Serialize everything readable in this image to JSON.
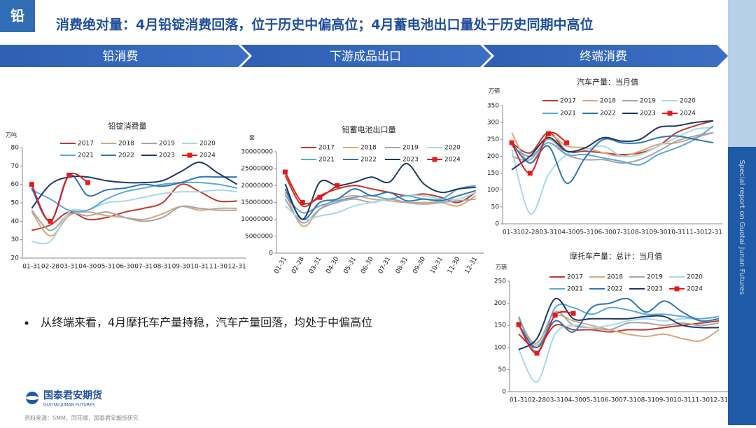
{
  "slide": {
    "badge": "铅",
    "title": "消费绝对量：4月铅锭消费回落，位于历史中偏高位；4月蓄电池出口量处于历史同期中高位",
    "sections": [
      "铅消费",
      "下游成品出口",
      "终端消费"
    ],
    "side_text": "Special report on Guotai Junan Futures",
    "bullet": "从终端来看，4月摩托车产量持稳，汽车产量回落，均处于中偏高位",
    "logo": {
      "name": "国泰君安期货",
      "name_en": "GUOTAI JUNAN FUTURES"
    },
    "source": "资料来源：SMM，同花顺，国泰君安期货研究"
  },
  "chart_data": [
    {
      "type": "line",
      "title": "铅锭消费量",
      "y_unit": "万吨",
      "legend": "top",
      "grid": false,
      "categories": [
        "01-31",
        "02-28",
        "03-31",
        "04-30",
        "05-31",
        "06-30",
        "07-31",
        "08-31",
        "09-30",
        "10-31",
        "11-30",
        "12-31"
      ],
      "ylim": [
        20,
        80
      ],
      "yticks": [
        20,
        30,
        40,
        50,
        60,
        70,
        80
      ],
      "series": [
        {
          "name": "2017",
          "color": "#c0392b",
          "values": [
            35,
            38,
            45,
            41,
            42,
            45,
            47,
            50,
            60,
            56,
            51,
            51
          ]
        },
        {
          "name": "2018",
          "color": "#d9a77a",
          "values": [
            45,
            32,
            43,
            45,
            43,
            42,
            41,
            44,
            48,
            46,
            47,
            47
          ]
        },
        {
          "name": "2019",
          "color": "#a6a6a6",
          "values": [
            46,
            35,
            44,
            43,
            45,
            42,
            40,
            42,
            48,
            47,
            46,
            46
          ]
        },
        {
          "name": "2020",
          "color": "#a8d8ea",
          "values": [
            29,
            29,
            45,
            46,
            50,
            51,
            53,
            55,
            56,
            56,
            57,
            56
          ]
        },
        {
          "name": "2021",
          "color": "#5aa9dc",
          "values": [
            57,
            52,
            46,
            46,
            52,
            56,
            58,
            60,
            61,
            61,
            60,
            58
          ]
        },
        {
          "name": "2022",
          "color": "#2e75b6",
          "values": [
            58,
            40,
            65,
            54,
            57,
            58,
            60,
            59,
            61,
            64,
            64,
            64
          ]
        },
        {
          "name": "2023",
          "color": "#1f3864",
          "values": [
            47,
            60,
            64,
            64,
            62,
            61,
            61,
            62,
            67,
            72,
            66,
            60
          ]
        },
        {
          "name": "2024",
          "color": "#e41a1a",
          "marker": "square",
          "values": [
            60,
            40,
            65,
            61,
            null,
            null,
            null,
            null,
            null,
            null,
            null,
            null
          ]
        }
      ]
    },
    {
      "type": "line",
      "title": "铅蓄电池出口量",
      "y_unit": "套",
      "legend": "top",
      "grid": false,
      "categories": [
        "01-31",
        "02-28",
        "03-31",
        "04-30",
        "05-31",
        "06-30",
        "07-31",
        "08-31",
        "09-30",
        "10-31",
        "11-30",
        "12-31"
      ],
      "ylim": [
        0,
        30000000
      ],
      "yticks": [
        0,
        5000000,
        10000000,
        15000000,
        20000000,
        25000000,
        30000000
      ],
      "series": [
        {
          "name": "2017",
          "color": "#c0392b",
          "values": [
            23000000,
            14000000,
            17000000,
            19000000,
            20000000,
            19000000,
            18000000,
            17000000,
            17500000,
            16500000,
            15000000,
            18000000
          ]
        },
        {
          "name": "2018",
          "color": "#d9a77a",
          "values": [
            18000000,
            8000000,
            13000000,
            16000000,
            17000000,
            16000000,
            15500000,
            15000000,
            15000000,
            15000000,
            14000000,
            17000000
          ]
        },
        {
          "name": "2019",
          "color": "#a6a6a6",
          "values": [
            16000000,
            9000000,
            13000000,
            15000000,
            16000000,
            15000000,
            16000000,
            15000000,
            14500000,
            15000000,
            15500000,
            16000000
          ]
        },
        {
          "name": "2020",
          "color": "#a8d8ea",
          "values": [
            14000000,
            10000000,
            11000000,
            12000000,
            14000000,
            15000000,
            16000000,
            17000000,
            17000000,
            16000000,
            16000000,
            18000000
          ]
        },
        {
          "name": "2021",
          "color": "#5aa9dc",
          "values": [
            17000000,
            12000000,
            14000000,
            15500000,
            16500000,
            17000000,
            16000000,
            17000000,
            16000000,
            16000000,
            19000000,
            20000000
          ]
        },
        {
          "name": "2022",
          "color": "#2e75b6",
          "values": [
            19000000,
            10000000,
            15000000,
            16000000,
            19000000,
            17000000,
            18000000,
            15500000,
            16000000,
            15500000,
            17000000,
            18500000
          ]
        },
        {
          "name": "2023",
          "color": "#1f3864",
          "values": [
            20500000,
            10000000,
            21000000,
            20000000,
            21000000,
            22500000,
            21000000,
            26500000,
            20500000,
            18000000,
            19000000,
            19500000
          ]
        },
        {
          "name": "2024",
          "color": "#e41a1a",
          "marker": "square",
          "values": [
            24000000,
            15000000,
            16500000,
            20000000,
            null,
            null,
            null,
            null,
            null,
            null,
            null,
            null
          ]
        }
      ]
    },
    {
      "type": "line",
      "title": "汽车产量：当月值",
      "y_unit": "万辆",
      "legend": "top",
      "grid": false,
      "categories": [
        "01-31",
        "02-28",
        "03-31",
        "04-30",
        "05-31",
        "06-30",
        "07-31",
        "08-31",
        "09-30",
        "10-31",
        "11-30",
        "12-31"
      ],
      "ylim": [
        0,
        350
      ],
      "yticks": [
        0,
        50,
        100,
        150,
        200,
        250,
        300,
        350
      ],
      "series": [
        {
          "name": "2017",
          "color": "#c0392b",
          "values": [
            240,
            210,
            270,
            215,
            215,
            210,
            205,
            210,
            230,
            270,
            290,
            305
          ]
        },
        {
          "name": "2018",
          "color": "#d9a77a",
          "values": [
            270,
            180,
            260,
            230,
            225,
            210,
            200,
            215,
            235,
            240,
            255,
            270
          ]
        },
        {
          "name": "2019",
          "color": "#a6a6a6",
          "values": [
            200,
            190,
            250,
            205,
            190,
            190,
            180,
            190,
            215,
            245,
            260,
            270
          ]
        },
        {
          "name": "2020",
          "color": "#a8d8ea",
          "values": [
            220,
            30,
            145,
            205,
            220,
            230,
            200,
            205,
            230,
            255,
            280,
            285
          ]
        },
        {
          "name": "2021",
          "color": "#5aa9dc",
          "values": [
            230,
            200,
            240,
            205,
            205,
            195,
            185,
            175,
            205,
            225,
            250,
            290
          ]
        },
        {
          "name": "2022",
          "color": "#2e75b6",
          "values": [
            240,
            180,
            230,
            120,
            195,
            250,
            240,
            240,
            255,
            260,
            250,
            240
          ]
        },
        {
          "name": "2023",
          "color": "#1f3864",
          "values": [
            160,
            200,
            255,
            215,
            225,
            255,
            245,
            250,
            285,
            290,
            300,
            305
          ]
        },
        {
          "name": "2024",
          "color": "#e41a1a",
          "marker": "square",
          "values": [
            240,
            150,
            267,
            240,
            null,
            null,
            null,
            null,
            null,
            null,
            null,
            null
          ]
        }
      ]
    },
    {
      "type": "line",
      "title": "摩托车产量：总计：当月值",
      "y_unit": "万辆",
      "legend": "top",
      "grid": false,
      "categories": [
        "01-31",
        "02-28",
        "03-31",
        "04-30",
        "05-31",
        "06-30",
        "07-31",
        "08-31",
        "09-30",
        "10-31",
        "11-30",
        "12-31"
      ],
      "ylim": [
        0,
        250
      ],
      "yticks": [
        0,
        50,
        100,
        150,
        200,
        250
      ],
      "series": [
        {
          "name": "2017",
          "color": "#c0392b",
          "values": [
            130,
            100,
            150,
            140,
            140,
            135,
            140,
            140,
            145,
            150,
            155,
            160
          ]
        },
        {
          "name": "2018",
          "color": "#d9a77a",
          "values": [
            165,
            105,
            170,
            160,
            150,
            140,
            130,
            125,
            130,
            120,
            115,
            140
          ]
        },
        {
          "name": "2019",
          "color": "#a6a6a6",
          "values": [
            150,
            110,
            180,
            150,
            145,
            140,
            155,
            155,
            150,
            155,
            150,
            155
          ]
        },
        {
          "name": "2020",
          "color": "#a8d8ea",
          "values": [
            95,
            22,
            130,
            150,
            145,
            150,
            160,
            165,
            160,
            165,
            165,
            170
          ]
        },
        {
          "name": "2021",
          "color": "#5aa9dc",
          "values": [
            170,
            90,
            190,
            190,
            175,
            190,
            185,
            175,
            175,
            170,
            165,
            170
          ]
        },
        {
          "name": "2022",
          "color": "#2e75b6",
          "values": [
            150,
            100,
            160,
            135,
            190,
            200,
            210,
            180,
            205,
            180,
            160,
            165
          ]
        },
        {
          "name": "2023",
          "color": "#1f3864",
          "values": [
            95,
            120,
            210,
            165,
            165,
            165,
            165,
            170,
            170,
            150,
            145,
            145
          ]
        },
        {
          "name": "2024",
          "color": "#e41a1a",
          "marker": "square",
          "values": [
            152,
            87,
            173,
            177,
            null,
            null,
            null,
            null,
            null,
            null,
            null,
            null
          ]
        }
      ]
    }
  ]
}
